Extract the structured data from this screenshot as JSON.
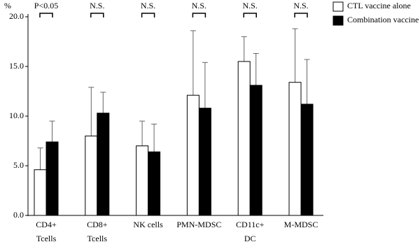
{
  "chart_data": {
    "type": "bar",
    "y_label": "%",
    "categories": [
      [
        "CD4+",
        "Tcells"
      ],
      [
        "CD8+",
        "Tcells"
      ],
      [
        "NK cells"
      ],
      [
        "PMN-MDSC"
      ],
      [
        "CD11c+",
        "DC"
      ],
      [
        "M-MDSC"
      ]
    ],
    "series": [
      {
        "name": "CTL vaccine alone",
        "color": "#ffffff",
        "values": [
          4.6,
          8.0,
          7.0,
          12.1,
          15.5,
          13.4
        ],
        "errors": [
          2.2,
          4.9,
          2.5,
          6.5,
          2.5,
          5.4
        ]
      },
      {
        "name": "Combination vaccine",
        "color": "#000000",
        "values": [
          7.4,
          10.3,
          6.4,
          10.8,
          13.1,
          11.2
        ],
        "errors": [
          2.1,
          2.1,
          2.8,
          4.6,
          3.2,
          4.5
        ]
      }
    ],
    "significance": [
      "P<0.05",
      "N.S.",
      "N.S.",
      "N.S.",
      "N.S.",
      "N.S."
    ],
    "ylim": [
      0,
      20
    ],
    "yticks": [
      {
        "value": 0,
        "label": "0.0"
      },
      {
        "value": 5,
        "label": "5.0"
      },
      {
        "value": 10,
        "label": "10.0"
      },
      {
        "value": 15,
        "label": "15.0"
      },
      {
        "value": 20,
        "label": "20.0"
      }
    ],
    "legend": "top-right"
  }
}
